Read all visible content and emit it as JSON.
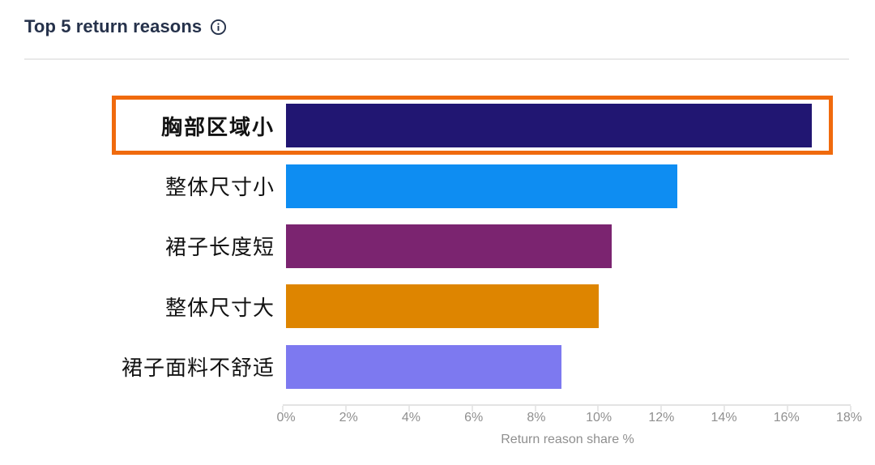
{
  "header": {
    "title": "Top 5 return reasons"
  },
  "chart_data": {
    "type": "bar",
    "orientation": "horizontal",
    "title": "Top 5 return reasons",
    "categories": [
      "胸部区域小",
      "整体尺寸小",
      "裙子长度短",
      "整体尺寸大",
      "裙子面料不舒适"
    ],
    "values": [
      16.8,
      12.5,
      10.4,
      10.0,
      8.8
    ],
    "unit": "%",
    "bar_colors": [
      "#211672",
      "#0e8df2",
      "#7b2470",
      "#de8500",
      "#7d79f0"
    ],
    "xlabel": "Return reason share %",
    "x_ticks": [
      "0%",
      "2%",
      "4%",
      "6%",
      "8%",
      "10%",
      "12%",
      "14%",
      "16%",
      "18%"
    ],
    "xlim": [
      0,
      18
    ],
    "grid": false,
    "legend": false,
    "highlighted_index": 0,
    "highlight_color": "#f06a0d",
    "title_color": "#26324b"
  }
}
